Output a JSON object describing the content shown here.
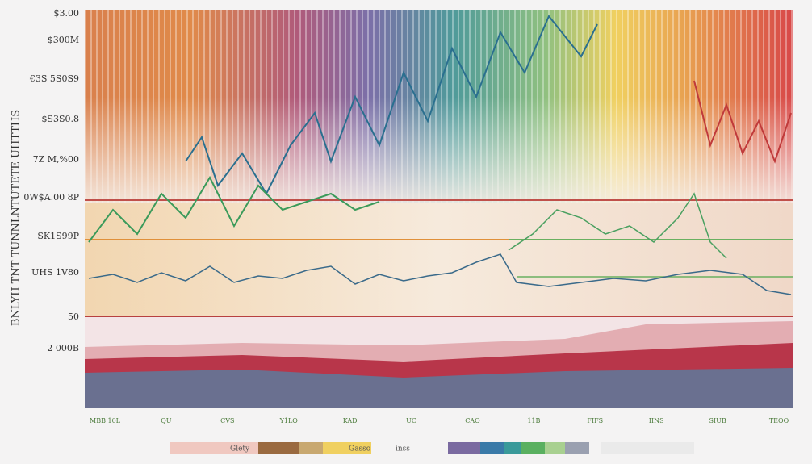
{
  "y_axis": {
    "title": "BNLYH TNT TUNNLNTUTETE UHTTHS",
    "labels": [
      "$3.00",
      "$300M",
      "€3S 5S0S9",
      "$S3S0.8",
      "7Z M,%00",
      "0W$A.00 8P",
      "SK1S99P",
      "UHS 1V80",
      "50",
      "2 000B"
    ]
  },
  "x_axis": {
    "labels": [
      "MBB 10L",
      "QU",
      "CVS",
      "Y1LO",
      "KAD",
      "UC",
      "CAO",
      "11B",
      "FIFS",
      "IINS",
      "SIUB",
      "TEOO"
    ]
  },
  "legend": [
    "Glety",
    "Gasso",
    "inss"
  ]
}
